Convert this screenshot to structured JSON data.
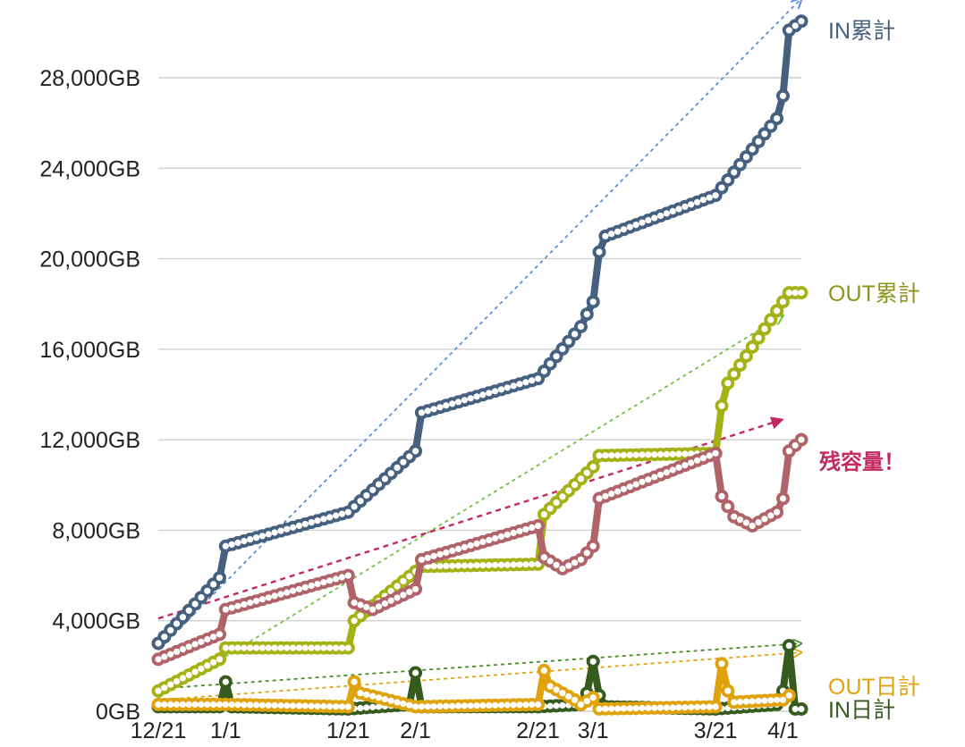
{
  "chart_data": {
    "type": "line",
    "x_ticks": [
      "12/21",
      "1/1",
      "1/21",
      "2/1",
      "2/21",
      "3/1",
      "3/21",
      "4/1"
    ],
    "y_ticks": [
      "0GB",
      "4,000GB",
      "8,000GB",
      "12,000GB",
      "16,000GB",
      "20,000GB",
      "24,000GB",
      "28,000GB"
    ],
    "y_tick_values": [
      0,
      4000,
      8000,
      12000,
      16000,
      20000,
      24000,
      28000
    ],
    "ylim": [
      0,
      30000
    ],
    "x_range": [
      "12/21",
      "4/4"
    ],
    "grid": true,
    "series": [
      {
        "name": "IN累計",
        "color": "#46617f",
        "anchors": [
          [
            "12/21",
            3000
          ],
          [
            "12/31",
            5900
          ],
          [
            "1/1",
            7300
          ],
          [
            "1/21",
            8800
          ],
          [
            "2/1",
            11500
          ],
          [
            "2/2",
            13200
          ],
          [
            "2/21",
            14700
          ],
          [
            "2/28",
            17000
          ],
          [
            "3/1",
            18100
          ],
          [
            "3/2",
            20300
          ],
          [
            "3/3",
            21000
          ],
          [
            "3/21",
            22800
          ],
          [
            "3/31",
            26200
          ],
          [
            "4/1",
            27200
          ],
          [
            "4/2",
            30100
          ],
          [
            "4/4",
            30500
          ]
        ],
        "trend": [
          [
            "12/21",
            2700
          ],
          [
            "4/4",
            31500
          ]
        ],
        "trend_color": "#5b8fd6"
      },
      {
        "name": "OUT累計",
        "color": "#a3b316",
        "label_color": "#8a9618",
        "anchors": [
          [
            "12/21",
            900
          ],
          [
            "12/31",
            2300
          ],
          [
            "1/1",
            2800
          ],
          [
            "1/21",
            2800
          ],
          [
            "1/22",
            4000
          ],
          [
            "2/2",
            6400
          ],
          [
            "2/21",
            6500
          ],
          [
            "2/22",
            8700
          ],
          [
            "3/1",
            10800
          ],
          [
            "3/2",
            11300
          ],
          [
            "3/21",
            11400
          ],
          [
            "3/22",
            13500
          ],
          [
            "3/23",
            14500
          ],
          [
            "4/2",
            18500
          ],
          [
            "4/4",
            18500
          ]
        ],
        "trend": [
          [
            "12/21",
            600
          ],
          [
            "4/1",
            17500
          ]
        ],
        "trend_color": "#77c043"
      },
      {
        "name": "残容量！",
        "color": "#b0646a",
        "label_color": "#c42a5c",
        "anchors": [
          [
            "12/21",
            2300
          ],
          [
            "12/31",
            3400
          ],
          [
            "1/1",
            4500
          ],
          [
            "1/21",
            6000
          ],
          [
            "1/22",
            4800
          ],
          [
            "1/25",
            4500
          ],
          [
            "2/1",
            5400
          ],
          [
            "2/2",
            6700
          ],
          [
            "2/21",
            8200
          ],
          [
            "2/22",
            6800
          ],
          [
            "2/25",
            6300
          ],
          [
            "2/28",
            6700
          ],
          [
            "3/1",
            7300
          ],
          [
            "3/2",
            9400
          ],
          [
            "3/21",
            11400
          ],
          [
            "3/22",
            9500
          ],
          [
            "3/24",
            8600
          ],
          [
            "3/27",
            8200
          ],
          [
            "3/31",
            8800
          ],
          [
            "4/1",
            9400
          ],
          [
            "4/2",
            11500
          ],
          [
            "4/4",
            12000
          ]
        ],
        "trend": [
          [
            "12/21",
            4100
          ],
          [
            "4/1",
            12900
          ]
        ],
        "trend_color": "#c42a5c"
      },
      {
        "name": "OUT日計",
        "color": "#e0a30e",
        "anchors": [
          [
            "12/21",
            300
          ],
          [
            "12/31",
            300
          ],
          [
            "1/1",
            300
          ],
          [
            "1/21",
            200
          ],
          [
            "1/22",
            1300
          ],
          [
            "1/23",
            800
          ],
          [
            "2/1",
            200
          ],
          [
            "2/21",
            300
          ],
          [
            "2/22",
            1800
          ],
          [
            "2/23",
            1100
          ],
          [
            "2/27",
            500
          ],
          [
            "2/28",
            300
          ],
          [
            "3/1",
            600
          ],
          [
            "3/2",
            100
          ],
          [
            "3/21",
            200
          ],
          [
            "3/22",
            2100
          ],
          [
            "3/23",
            900
          ],
          [
            "3/24",
            400
          ],
          [
            "3/31",
            500
          ],
          [
            "4/1",
            500
          ],
          [
            "4/2",
            700
          ]
        ],
        "trend": [
          [
            "12/21",
            500
          ],
          [
            "4/4",
            2600
          ]
        ],
        "trend_color": "#e0a30e"
      },
      {
        "name": "IN日計",
        "color": "#355b1f",
        "anchors": [
          [
            "12/21",
            200
          ],
          [
            "12/31",
            200
          ],
          [
            "1/1",
            1300
          ],
          [
            "1/2",
            200
          ],
          [
            "1/21",
            100
          ],
          [
            "1/31",
            300
          ],
          [
            "2/1",
            1700
          ],
          [
            "2/2",
            200
          ],
          [
            "2/21",
            200
          ],
          [
            "2/28",
            300
          ],
          [
            "2/29",
            800
          ],
          [
            "3/1",
            2200
          ],
          [
            "3/2",
            700
          ],
          [
            "3/3",
            200
          ],
          [
            "3/21",
            100
          ],
          [
            "3/31",
            300
          ],
          [
            "4/1",
            900
          ],
          [
            "4/2",
            2900
          ],
          [
            "4/3",
            100
          ],
          [
            "4/4",
            100
          ]
        ],
        "trend": [
          [
            "12/21",
            1000
          ],
          [
            "4/4",
            3000
          ]
        ],
        "trend_color": "#3f8f2a"
      }
    ]
  }
}
